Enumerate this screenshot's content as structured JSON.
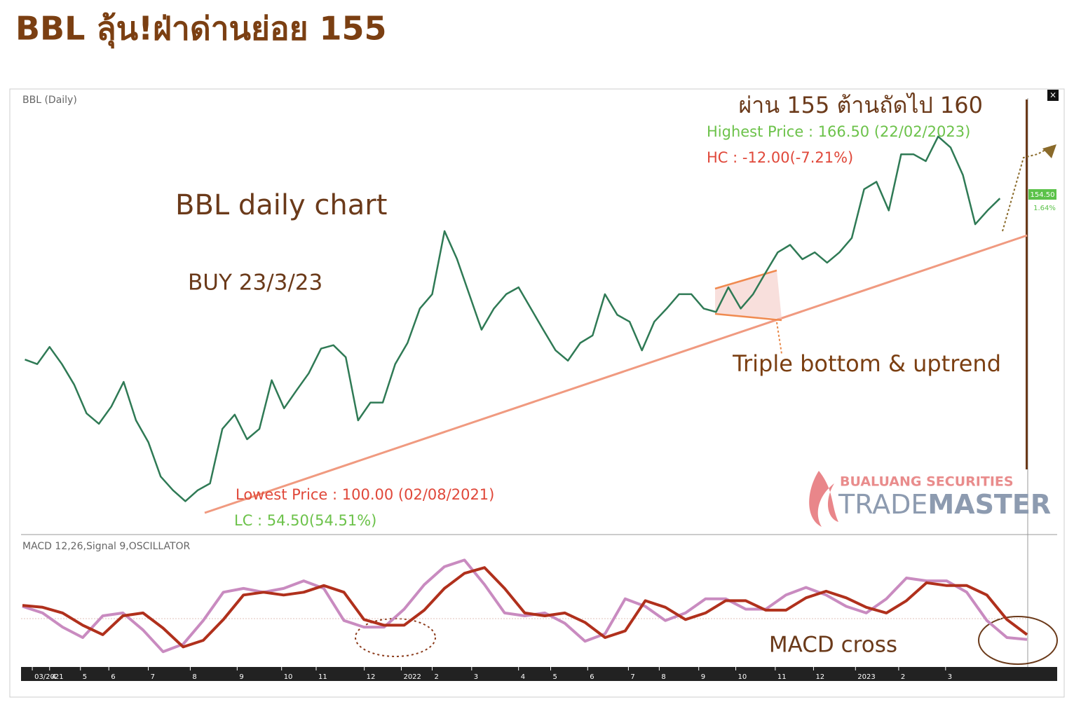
{
  "header": {
    "title": "BBL ลุ้น!ฝ่าด่านย่อย 155"
  },
  "chart_data": [
    {
      "type": "line",
      "title": "BBL (Daily)",
      "color": "#2f7a55",
      "values": [
        126.4,
        125.6,
        128.6,
        125.6,
        122,
        117,
        115.2,
        118.2,
        122.5,
        115.8,
        112,
        106,
        103.6,
        101.7,
        103.6,
        104.8,
        114.3,
        116.8,
        112.5,
        114.3,
        122.8,
        117.9,
        121,
        124,
        128.3,
        128.9,
        126.8,
        115.8,
        118.9,
        118.9,
        125.6,
        129.3,
        135.3,
        137.8,
        148.8,
        144,
        137.8,
        131.6,
        135.3,
        137.8,
        139,
        135.3,
        131.6,
        128,
        126.2,
        129.3,
        130.6,
        137.8,
        134.2,
        133,
        128,
        133,
        135.3,
        137.8,
        137.8,
        135.3,
        134.7,
        139,
        135.3,
        137.8,
        141.5,
        145.1,
        146.4,
        143.9,
        145.1,
        143.3,
        145.1,
        147.6,
        156.1,
        157.4,
        152.4,
        162.2,
        162.2,
        161,
        165.3,
        163.4,
        158.6,
        150,
        152.4,
        154.5
      ],
      "xlim": [
        -0.2,
        81.2
      ],
      "ylim": [
        96,
        172
      ],
      "xticks": [
        {
          "value": 0.6,
          "label": "03/2021"
        },
        {
          "value": 2,
          "label": "4"
        },
        {
          "value": 4.5,
          "label": "5"
        },
        {
          "value": 6.8,
          "label": "6"
        },
        {
          "value": 10,
          "label": "7"
        },
        {
          "value": 13.4,
          "label": "8"
        },
        {
          "value": 17.2,
          "label": "9"
        },
        {
          "value": 20.8,
          "label": "10"
        },
        {
          "value": 23.6,
          "label": "11"
        },
        {
          "value": 27.5,
          "label": "12"
        },
        {
          "value": 30.5,
          "label": "2022"
        },
        {
          "value": 33,
          "label": "2"
        },
        {
          "value": 36.2,
          "label": "3"
        },
        {
          "value": 40,
          "label": "4"
        },
        {
          "value": 42.6,
          "label": "5"
        },
        {
          "value": 45.6,
          "label": "6"
        },
        {
          "value": 48.9,
          "label": "7"
        },
        {
          "value": 51.4,
          "label": "8"
        },
        {
          "value": 54.6,
          "label": "9"
        },
        {
          "value": 57.6,
          "label": "10"
        },
        {
          "value": 60.8,
          "label": "11"
        },
        {
          "value": 63.9,
          "label": "12"
        },
        {
          "value": 67.3,
          "label": "2023"
        },
        {
          "value": 70.8,
          "label": "2"
        },
        {
          "value": 74.6,
          "label": "3"
        }
      ],
      "last_price_label": "154.50",
      "change_label": "1.64%",
      "annotations": {
        "resistance": "ผ่าน 155 ต้านถัดไป 160",
        "highest": "Highest Price : 166.50 (22/02/2023)",
        "hc": "HC : -12.00(-7.21%)",
        "chart_name": "BBL daily chart",
        "buy": "BUY 23/3/23",
        "lowest": "Lowest Price : 100.00 (02/08/2021)",
        "lc": "LC : 54.50(54.51%)",
        "pattern": "Triple bottom & uptrend",
        "broker": "BUALUANG SECURITIES",
        "brand_a": "TRADE",
        "brand_b": "MASTER"
      }
    },
    {
      "type": "line",
      "title": "MACD 12,26,Signal 9,OSCILLATOR",
      "ylim": [
        -5,
        6.5
      ],
      "series": [
        {
          "color": "#c98bc0",
          "values": [
            0.9,
            0.2,
            -1.3,
            -2.4,
            -0.1,
            0.2,
            -1.6,
            -3.9,
            -3.1,
            -0.6,
            2.4,
            2.8,
            2.4,
            2.8,
            3.6,
            2.8,
            -0.6,
            -1.3,
            -1.3,
            0.6,
            3.2,
            5.1,
            5.8,
            3.2,
            0.2,
            -0.1,
            0.2,
            -0.9,
            -2.8,
            -2.0,
            1.7,
            0.9,
            -0.6,
            0.2,
            1.7,
            1.7,
            0.6,
            0.6,
            2.1,
            2.9,
            2.1,
            0.9,
            0.2,
            1.7,
            3.9,
            3.6,
            3.6,
            2.4,
            -0.6,
            -2.4,
            -2.6
          ]
        },
        {
          "color": "#b0301c",
          "values": [
            1.0,
            0.8,
            0.2,
            -1.1,
            -2.1,
            -0.1,
            0.2,
            -1.4,
            -3.4,
            -2.7,
            -0.5,
            2.1,
            2.4,
            2.1,
            2.4,
            3.1,
            2.4,
            -0.5,
            -1.1,
            -1.1,
            0.5,
            2.8,
            4.4,
            5.0,
            2.8,
            0.2,
            -0.1,
            0.2,
            -0.8,
            -2.4,
            -1.7,
            1.5,
            0.8,
            -0.5,
            0.2,
            1.5,
            1.5,
            0.5,
            0.5,
            1.8,
            2.5,
            1.8,
            0.8,
            0.2,
            1.5,
            3.4,
            3.1,
            3.1,
            2.1,
            -0.5,
            -2.1
          ]
        }
      ],
      "annotation": "MACD cross"
    }
  ]
}
